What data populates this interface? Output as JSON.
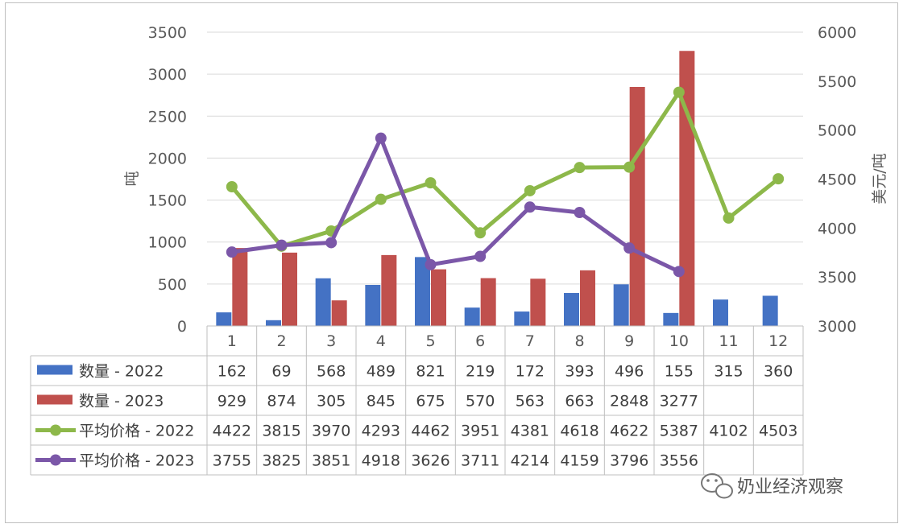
{
  "chart_data": {
    "type": "bar",
    "categories": [
      "1",
      "2",
      "3",
      "4",
      "5",
      "6",
      "7",
      "8",
      "9",
      "10",
      "11",
      "12"
    ],
    "y_left": {
      "label": "吨",
      "ylim": [
        0,
        3500
      ],
      "ticks": [
        "0",
        "500",
        "1000",
        "1500",
        "2000",
        "2500",
        "3000",
        "3500"
      ]
    },
    "y_right": {
      "label": "美元/吨",
      "ylim": [
        3000,
        6000
      ],
      "ticks": [
        "3000",
        "3500",
        "4000",
        "4500",
        "5000",
        "5500",
        "6000"
      ]
    },
    "series": [
      {
        "name": "数量 - 2022",
        "kind": "bar",
        "axis": "left",
        "color": "#4472c4",
        "values": [
          162,
          69,
          568,
          489,
          821,
          219,
          172,
          393,
          496,
          155,
          315,
          360
        ],
        "table": [
          "162",
          "69",
          "568",
          "489",
          "821",
          "219",
          "172",
          "393",
          "496",
          "155",
          "315",
          "360"
        ]
      },
      {
        "name": "数量 - 2023",
        "kind": "bar",
        "axis": "left",
        "color": "#c0504d",
        "values": [
          929,
          874,
          305,
          845,
          675,
          570,
          563,
          663,
          2848,
          3277,
          null,
          null
        ],
        "table": [
          "929",
          "874",
          "305",
          "845",
          "675",
          "570",
          "563",
          "663",
          "2848",
          "3277",
          "",
          ""
        ]
      },
      {
        "name": "平均价格 - 2022",
        "kind": "line",
        "axis": "right",
        "color": "#8db84a",
        "values": [
          4422,
          3815,
          3970,
          4293,
          4462,
          3951,
          4381,
          4618,
          4622,
          5387,
          4102,
          4503
        ],
        "table": [
          "4422",
          "3815",
          "3970",
          "4293",
          "4462",
          "3951",
          "4381",
          "4618",
          "4622",
          "5387",
          "4102",
          "4503"
        ]
      },
      {
        "name": "平均价格 - 2023",
        "kind": "line",
        "axis": "right",
        "color": "#7b57a8",
        "values": [
          3755,
          3825,
          3851,
          4918,
          3626,
          3711,
          4214,
          4159,
          3796,
          3556,
          null,
          null
        ],
        "table": [
          "3755",
          "3825",
          "3851",
          "4918",
          "3626",
          "3711",
          "4214",
          "4159",
          "3796",
          "3556",
          "",
          ""
        ]
      }
    ],
    "grid": true,
    "legend": "data-table"
  },
  "watermark": {
    "text": "奶业经济观察",
    "icon": "wechat-icon"
  }
}
